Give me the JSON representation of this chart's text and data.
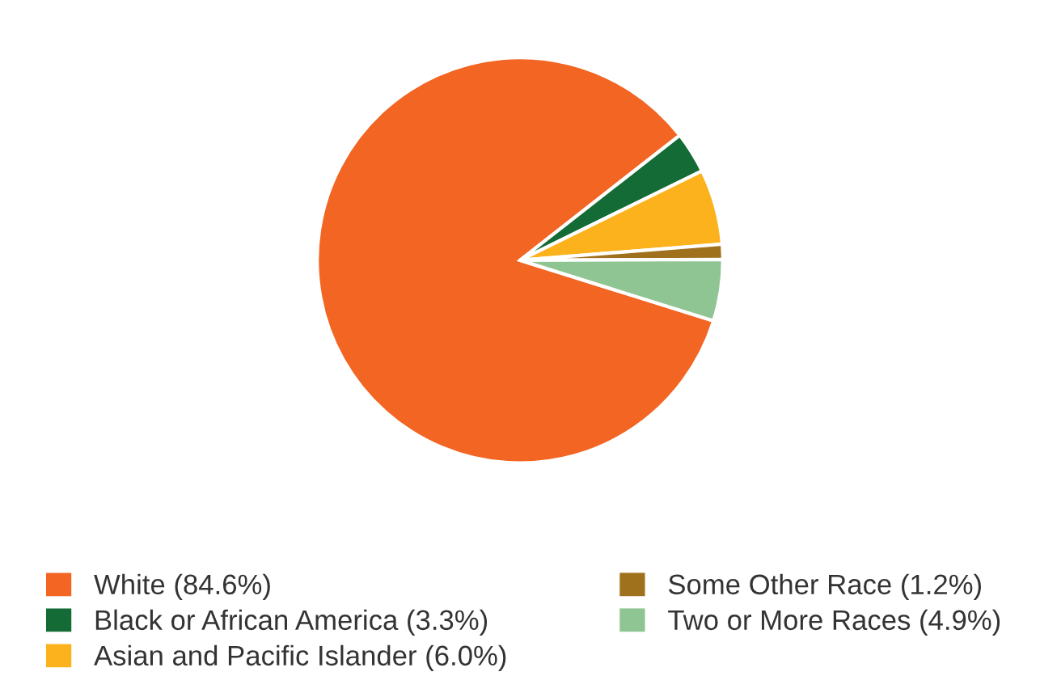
{
  "chart_data": {
    "type": "pie",
    "categories": [
      "White (84.6%)",
      "Black or African America (3.3%)",
      "Asian and Pacific Islander (6.0%)",
      "Some Other Race (1.2%)",
      "Two or More Races (4.9%)"
    ],
    "values": [
      84.6,
      3.3,
      6.0,
      1.2,
      4.9
    ],
    "colors": [
      "#f26522",
      "#146b35",
      "#fbb21d",
      "#a0711c",
      "#8fc493"
    ],
    "legend": "bottom"
  }
}
